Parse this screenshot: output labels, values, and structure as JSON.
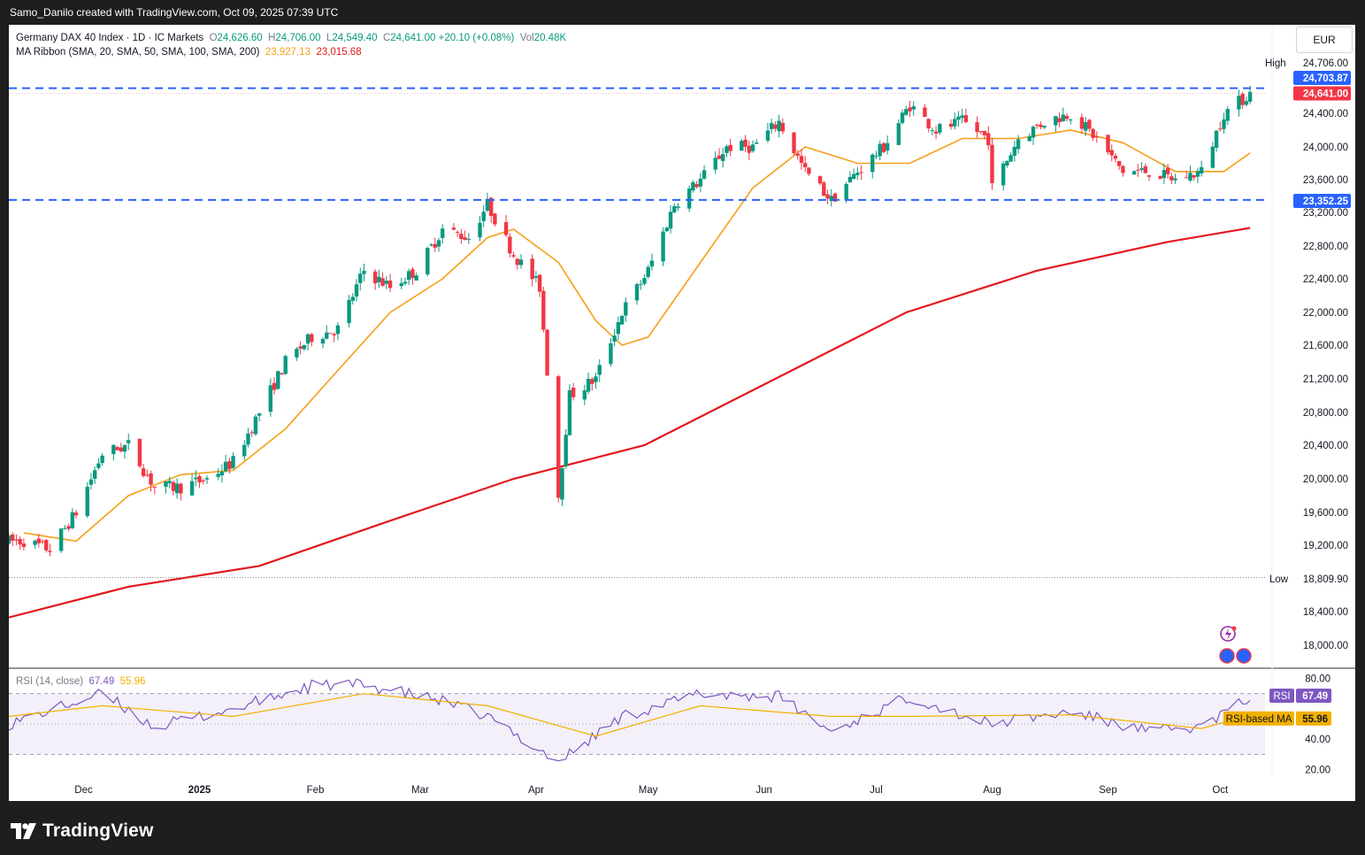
{
  "header": {
    "credit": "Samo_Danilo created with TradingView.com, Oct 09, 2025 07:39 UTC"
  },
  "legend": {
    "symbol": "Germany DAX 40 Index · 1D · IC Markets",
    "o_label": "O",
    "o": "24,626.60",
    "h_label": "H",
    "h": "24,706.00",
    "l_label": "L",
    "l": "24,549.40",
    "c_label": "C",
    "c": "24,641.00",
    "change": "+20.10 (+0.08%)",
    "vol_label": "Vol",
    "vol": "20.48K",
    "ma_title": "MA Ribbon (SMA, 20, SMA, 50, SMA, 100, SMA, 200)",
    "ma_a": "23,927.13",
    "ma_b": "23,015.68"
  },
  "currency": "EUR",
  "price_scale": {
    "ticks": [
      "24,400.00",
      "24,000.00",
      "23,600.00",
      "23,200.00",
      "22,800.00",
      "22,400.00",
      "22,000.00",
      "21,600.00",
      "21,200.00",
      "20,800.00",
      "20,400.00",
      "20,000.00",
      "19,600.00",
      "19,200.00",
      "18,400.00",
      "18,000.00"
    ],
    "high_label": "High",
    "high_value": "24,706.00",
    "low_label": "Low",
    "low_value": "18,809.90",
    "line_upper": "24,703.87",
    "line_lower": "23,352.25",
    "last_price": "24,641.00"
  },
  "rsi": {
    "title": "RSI (14, close)",
    "value": "67.49",
    "ma_value": "55.96",
    "ticks": [
      "80.00",
      "40.00",
      "20.00"
    ],
    "tag_rsi": "RSI",
    "tag_ma": "RSI-based MA"
  },
  "time_axis": [
    "Dec",
    "2025",
    "Feb",
    "Mar",
    "Apr",
    "May",
    "Jun",
    "Jul",
    "Aug",
    "Sep",
    "Oct"
  ],
  "colors": {
    "up": "#089981",
    "down": "#f23645",
    "ma_fast": "#f59f17",
    "ma_slow": "#e3181d",
    "level_line": "#2962ff",
    "rsi": "#7e57c2",
    "rsi_ma": "#f2b000"
  },
  "brand": "TradingView",
  "chart_data": {
    "type": "candlestick",
    "ylim": [
      17800,
      25000
    ],
    "x_range": [
      "2024-11-11",
      "2025-10-13"
    ],
    "horizontal_levels": [
      24703.87,
      23352.25
    ],
    "price_path": [
      [
        "2024-11-15",
        19250
      ],
      [
        "2024-11-22",
        19150
      ],
      [
        "2024-11-29",
        19600
      ],
      [
        "2024-12-06",
        20300
      ],
      [
        "2024-12-13",
        20400
      ],
      [
        "2024-12-20",
        19900
      ],
      [
        "2024-12-27",
        19900
      ],
      [
        "2025-01-03",
        20000
      ],
      [
        "2025-01-10",
        20200
      ],
      [
        "2025-01-17",
        20800
      ],
      [
        "2025-01-24",
        21400
      ],
      [
        "2025-01-31",
        21700
      ],
      [
        "2025-02-07",
        21800
      ],
      [
        "2025-02-14",
        22500
      ],
      [
        "2025-02-21",
        22300
      ],
      [
        "2025-02-28",
        22500
      ],
      [
        "2025-03-07",
        23000
      ],
      [
        "2025-03-14",
        22900
      ],
      [
        "2025-03-19",
        23300
      ],
      [
        "2025-03-26",
        22700
      ],
      [
        "2025-04-02",
        22300
      ],
      [
        "2025-04-07",
        19800
      ],
      [
        "2025-04-10",
        21000
      ],
      [
        "2025-04-17",
        21200
      ],
      [
        "2025-04-24",
        22000
      ],
      [
        "2025-05-01",
        22500
      ],
      [
        "2025-05-08",
        23300
      ],
      [
        "2025-05-15",
        23600
      ],
      [
        "2025-05-22",
        24000
      ],
      [
        "2025-05-29",
        24000
      ],
      [
        "2025-06-05",
        24300
      ],
      [
        "2025-06-12",
        23700
      ],
      [
        "2025-06-19",
        23350
      ],
      [
        "2025-06-26",
        23700
      ],
      [
        "2025-07-03",
        24000
      ],
      [
        "2025-07-10",
        24500
      ],
      [
        "2025-07-17",
        24200
      ],
      [
        "2025-07-24",
        24300
      ],
      [
        "2025-07-31",
        24100
      ],
      [
        "2025-08-01",
        23500
      ],
      [
        "2025-08-08",
        24100
      ],
      [
        "2025-08-15",
        24300
      ],
      [
        "2025-08-22",
        24400
      ],
      [
        "2025-08-29",
        24100
      ],
      [
        "2025-09-05",
        23700
      ],
      [
        "2025-09-12",
        23700
      ],
      [
        "2025-09-19",
        23600
      ],
      [
        "2025-09-26",
        23700
      ],
      [
        "2025-10-02",
        24400
      ],
      [
        "2025-10-09",
        24641
      ]
    ],
    "ma_20": [
      [
        "2024-11-15",
        19350
      ],
      [
        "2024-11-29",
        19250
      ],
      [
        "2024-12-13",
        19800
      ],
      [
        "2024-12-27",
        20050
      ],
      [
        "2025-01-10",
        20100
      ],
      [
        "2025-01-24",
        20600
      ],
      [
        "2025-02-07",
        21300
      ],
      [
        "2025-02-21",
        22000
      ],
      [
        "2025-03-07",
        22400
      ],
      [
        "2025-03-19",
        22900
      ],
      [
        "2025-03-26",
        23000
      ],
      [
        "2025-04-07",
        22600
      ],
      [
        "2025-04-17",
        21900
      ],
      [
        "2025-04-24",
        21600
      ],
      [
        "2025-05-01",
        21700
      ],
      [
        "2025-05-15",
        22600
      ],
      [
        "2025-05-29",
        23500
      ],
      [
        "2025-06-12",
        24000
      ],
      [
        "2025-06-26",
        23800
      ],
      [
        "2025-07-10",
        23800
      ],
      [
        "2025-07-24",
        24100
      ],
      [
        "2025-08-08",
        24100
      ],
      [
        "2025-08-22",
        24200
      ],
      [
        "2025-09-05",
        24050
      ],
      [
        "2025-09-19",
        23700
      ],
      [
        "2025-10-02",
        23700
      ],
      [
        "2025-10-09",
        23927
      ]
    ],
    "ma_200": [
      [
        "2024-11-11",
        18330
      ],
      [
        "2024-12-13",
        18700
      ],
      [
        "2025-01-17",
        18950
      ],
      [
        "2025-02-21",
        19500
      ],
      [
        "2025-03-26",
        20000
      ],
      [
        "2025-04-30",
        20400
      ],
      [
        "2025-06-04",
        21200
      ],
      [
        "2025-07-09",
        22000
      ],
      [
        "2025-08-13",
        22500
      ],
      [
        "2025-09-17",
        22850
      ],
      [
        "2025-10-09",
        23016
      ]
    ],
    "rsi_14": [
      [
        "2024-11-11",
        50
      ],
      [
        "2024-12-06",
        70
      ],
      [
        "2024-12-20",
        48
      ],
      [
        "2025-01-10",
        60
      ],
      [
        "2025-01-31",
        75
      ],
      [
        "2025-02-14",
        76
      ],
      [
        "2025-03-07",
        65
      ],
      [
        "2025-03-19",
        55
      ],
      [
        "2025-04-07",
        25
      ],
      [
        "2025-04-24",
        55
      ],
      [
        "2025-05-15",
        70
      ],
      [
        "2025-06-05",
        68
      ],
      [
        "2025-06-19",
        45
      ],
      [
        "2025-07-10",
        68
      ],
      [
        "2025-07-31",
        50
      ],
      [
        "2025-08-22",
        58
      ],
      [
        "2025-09-12",
        45
      ],
      [
        "2025-09-26",
        48
      ],
      [
        "2025-10-09",
        67.49
      ]
    ],
    "rsi_ma": [
      [
        "2024-11-11",
        55
      ],
      [
        "2024-12-06",
        62
      ],
      [
        "2025-01-10",
        55
      ],
      [
        "2025-02-14",
        70
      ],
      [
        "2025-03-19",
        62
      ],
      [
        "2025-04-17",
        42
      ],
      [
        "2025-05-15",
        62
      ],
      [
        "2025-06-19",
        55
      ],
      [
        "2025-07-10",
        55
      ],
      [
        "2025-08-22",
        56
      ],
      [
        "2025-09-26",
        47
      ],
      [
        "2025-10-09",
        55.96
      ]
    ],
    "rsi_ylim": [
      15,
      85
    ],
    "rsi_bands": [
      70,
      50,
      30
    ]
  }
}
